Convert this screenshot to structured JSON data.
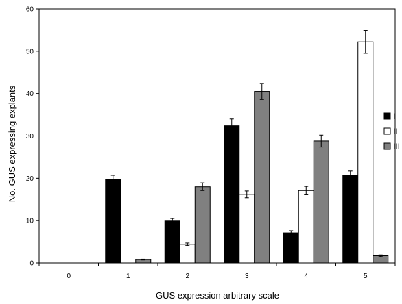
{
  "chart_data": {
    "type": "bar",
    "categories": [
      "0",
      "1",
      "2",
      "3",
      "4",
      "5"
    ],
    "xlabel": "GUS expression arbitrary scale",
    "ylabel": "No. GUS expressing explants",
    "ylim": [
      0,
      60
    ],
    "yticks": [
      0,
      10,
      20,
      30,
      40,
      50,
      60
    ],
    "grid": false,
    "legend": "right",
    "series": [
      {
        "name": "I",
        "color": "#000000",
        "values": [
          0,
          19.8,
          9.9,
          32.4,
          7.1,
          20.7
        ],
        "errors": [
          0,
          0.9,
          0.6,
          1.6,
          0.5,
          1.0
        ]
      },
      {
        "name": "II",
        "color": "#ffffff",
        "values": [
          0,
          0,
          4.4,
          16.2,
          17.1,
          52.2
        ],
        "errors": [
          0,
          0,
          0.3,
          0.8,
          1.0,
          2.7
        ]
      },
      {
        "name": "III",
        "color": "#808080",
        "values": [
          0,
          0.8,
          18.0,
          40.5,
          28.8,
          1.7
        ],
        "errors": [
          0,
          0.1,
          0.9,
          1.9,
          1.4,
          0.2
        ]
      }
    ]
  }
}
